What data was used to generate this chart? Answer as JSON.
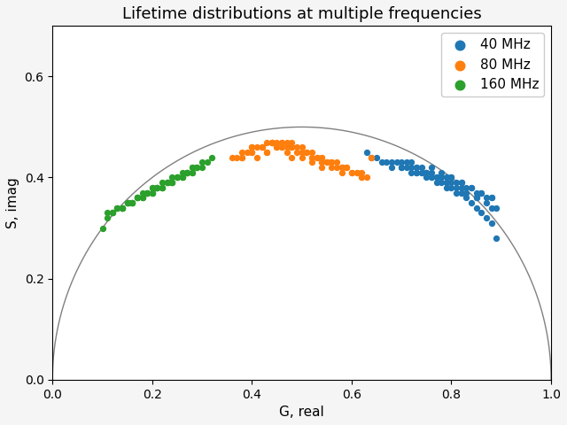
{
  "title": "Lifetime distributions at multiple frequencies",
  "xlabel": "G, real",
  "ylabel": "S, imag",
  "xlim": [
    0.0,
    1.0
  ],
  "ylim": [
    0.0,
    0.7
  ],
  "xticks": [
    0.0,
    0.2,
    0.4,
    0.6,
    0.8,
    1.0
  ],
  "yticks": [
    0.0,
    0.2,
    0.4,
    0.6
  ],
  "series": [
    {
      "label": "40 MHz",
      "color": "#1f77b4",
      "g": [
        0.65,
        0.67,
        0.68,
        0.7,
        0.72,
        0.73,
        0.74,
        0.75,
        0.76,
        0.77,
        0.78,
        0.79,
        0.8,
        0.81,
        0.82,
        0.83,
        0.84,
        0.85,
        0.86,
        0.87,
        0.88,
        0.89,
        0.63,
        0.64,
        0.66,
        0.69,
        0.71,
        0.73,
        0.75,
        0.77,
        0.79,
        0.81,
        0.83,
        0.85,
        0.87,
        0.72,
        0.74,
        0.76,
        0.78,
        0.8,
        0.82,
        0.84,
        0.86,
        0.88,
        0.75,
        0.77,
        0.79,
        0.81,
        0.83,
        0.7,
        0.72,
        0.74,
        0.76,
        0.78,
        0.8,
        0.82,
        0.84,
        0.86,
        0.88,
        0.71,
        0.73,
        0.75,
        0.78,
        0.8,
        0.82,
        0.85,
        0.87,
        0.89,
        0.68,
        0.7,
        0.73,
        0.76,
        0.79,
        0.82,
        0.85,
        0.88
      ],
      "s": [
        0.44,
        0.43,
        0.42,
        0.42,
        0.41,
        0.41,
        0.41,
        0.4,
        0.4,
        0.39,
        0.39,
        0.38,
        0.38,
        0.37,
        0.37,
        0.36,
        0.35,
        0.34,
        0.33,
        0.32,
        0.31,
        0.28,
        0.45,
        0.44,
        0.43,
        0.43,
        0.42,
        0.42,
        0.41,
        0.4,
        0.39,
        0.38,
        0.37,
        0.36,
        0.35,
        0.42,
        0.41,
        0.41,
        0.4,
        0.4,
        0.39,
        0.38,
        0.37,
        0.36,
        0.41,
        0.4,
        0.4,
        0.39,
        0.38,
        0.43,
        0.43,
        0.42,
        0.42,
        0.41,
        0.4,
        0.39,
        0.38,
        0.37,
        0.36,
        0.43,
        0.42,
        0.41,
        0.4,
        0.39,
        0.38,
        0.37,
        0.36,
        0.34,
        0.43,
        0.42,
        0.41,
        0.4,
        0.39,
        0.37,
        0.36,
        0.34
      ]
    },
    {
      "label": "80 MHz",
      "color": "#ff7f0e",
      "g": [
        0.37,
        0.38,
        0.39,
        0.4,
        0.41,
        0.42,
        0.43,
        0.44,
        0.45,
        0.46,
        0.47,
        0.48,
        0.49,
        0.5,
        0.51,
        0.52,
        0.53,
        0.54,
        0.55,
        0.56,
        0.57,
        0.58,
        0.59,
        0.6,
        0.61,
        0.62,
        0.63,
        0.4,
        0.42,
        0.44,
        0.46,
        0.48,
        0.5,
        0.52,
        0.54,
        0.56,
        0.58,
        0.6,
        0.62,
        0.43,
        0.45,
        0.47,
        0.49,
        0.51,
        0.53,
        0.55,
        0.57,
        0.59,
        0.61,
        0.48,
        0.5,
        0.52,
        0.54,
        0.56,
        0.58,
        0.41,
        0.43,
        0.45,
        0.47,
        0.64,
        0.38,
        0.4,
        0.42,
        0.44,
        0.46,
        0.48,
        0.5,
        0.52,
        0.54,
        0.36,
        0.38,
        0.4,
        0.44,
        0.46,
        0.5,
        0.54,
        0.58,
        0.62
      ],
      "s": [
        0.44,
        0.44,
        0.45,
        0.45,
        0.46,
        0.46,
        0.47,
        0.47,
        0.47,
        0.47,
        0.47,
        0.47,
        0.46,
        0.46,
        0.45,
        0.45,
        0.44,
        0.44,
        0.43,
        0.43,
        0.43,
        0.42,
        0.42,
        0.41,
        0.41,
        0.4,
        0.4,
        0.46,
        0.46,
        0.47,
        0.47,
        0.46,
        0.45,
        0.44,
        0.43,
        0.43,
        0.42,
        0.41,
        0.4,
        0.45,
        0.46,
        0.46,
        0.45,
        0.45,
        0.44,
        0.43,
        0.42,
        0.42,
        0.41,
        0.44,
        0.44,
        0.43,
        0.42,
        0.42,
        0.41,
        0.44,
        0.45,
        0.46,
        0.45,
        0.44,
        0.44,
        0.45,
        0.46,
        0.47,
        0.46,
        0.46,
        0.45,
        0.44,
        0.43,
        0.44,
        0.45,
        0.46,
        0.47,
        0.46,
        0.45,
        0.44,
        0.42,
        0.41
      ]
    },
    {
      "label": "160 MHz",
      "color": "#2ca02c",
      "g": [
        0.11,
        0.12,
        0.13,
        0.14,
        0.15,
        0.16,
        0.17,
        0.18,
        0.19,
        0.2,
        0.21,
        0.22,
        0.23,
        0.24,
        0.25,
        0.26,
        0.27,
        0.28,
        0.29,
        0.3,
        0.13,
        0.15,
        0.17,
        0.19,
        0.21,
        0.23,
        0.25,
        0.27,
        0.29,
        0.31,
        0.14,
        0.16,
        0.18,
        0.2,
        0.22,
        0.24,
        0.26,
        0.28,
        0.12,
        0.14,
        0.16,
        0.18,
        0.2,
        0.22,
        0.24,
        0.26,
        0.28,
        0.3,
        0.32,
        0.19,
        0.21,
        0.23,
        0.25,
        0.27,
        0.1,
        0.11,
        0.13,
        0.15,
        0.17,
        0.2,
        0.12,
        0.14,
        0.16,
        0.18,
        0.2,
        0.22,
        0.24,
        0.26,
        0.28,
        0.15,
        0.17,
        0.19,
        0.21,
        0.23,
        0.25,
        0.27,
        0.29
      ],
      "s": [
        0.33,
        0.33,
        0.34,
        0.34,
        0.35,
        0.35,
        0.36,
        0.37,
        0.37,
        0.38,
        0.38,
        0.39,
        0.39,
        0.4,
        0.4,
        0.41,
        0.41,
        0.42,
        0.42,
        0.43,
        0.34,
        0.35,
        0.36,
        0.37,
        0.38,
        0.39,
        0.4,
        0.41,
        0.42,
        0.43,
        0.34,
        0.35,
        0.36,
        0.37,
        0.38,
        0.39,
        0.4,
        0.41,
        0.33,
        0.34,
        0.35,
        0.36,
        0.37,
        0.38,
        0.39,
        0.4,
        0.41,
        0.42,
        0.44,
        0.37,
        0.38,
        0.39,
        0.4,
        0.41,
        0.3,
        0.32,
        0.34,
        0.35,
        0.36,
        0.38,
        0.33,
        0.34,
        0.35,
        0.36,
        0.37,
        0.38,
        0.39,
        0.4,
        0.42,
        0.35,
        0.36,
        0.37,
        0.38,
        0.39,
        0.4,
        0.41,
        0.42
      ]
    }
  ],
  "semicircle_color": "#808080",
  "background_color": "#ffffff",
  "fig_facecolor": "#f5f5f5",
  "figsize": [
    6.4,
    4.8
  ],
  "dpi": 100,
  "marker_size": 18,
  "title_fontsize": 13,
  "label_fontsize": 11,
  "tick_fontsize": 10,
  "legend_fontsize": 11
}
